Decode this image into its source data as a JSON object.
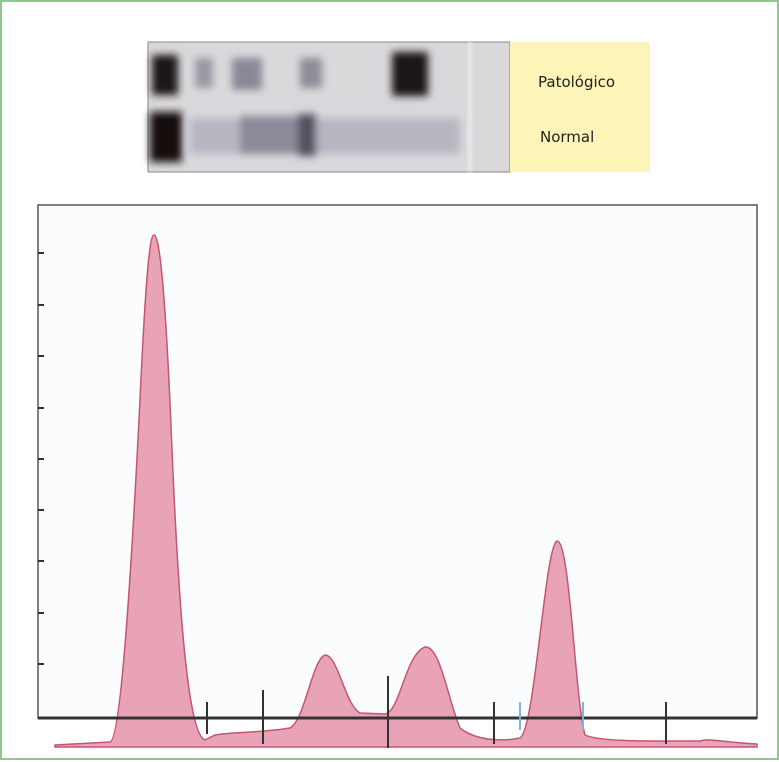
{
  "gel": {
    "labels": [
      "Patológico",
      "Normal"
    ]
  }
}
